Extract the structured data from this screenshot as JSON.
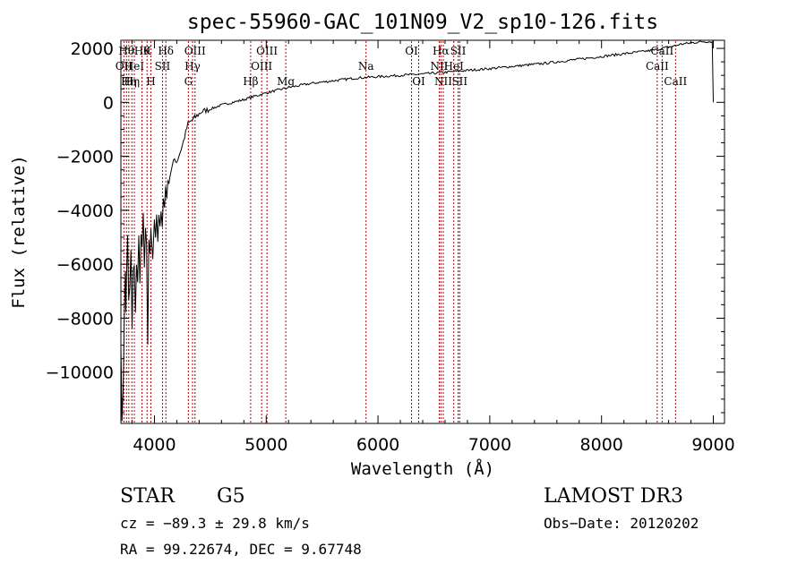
{
  "chart_data": {
    "type": "line",
    "title": "spec-55960-GAC_101N09_V2_sp10-126.fits",
    "xlabel": "Wavelength (Å)",
    "ylabel": "Flux (relative)",
    "xlim": [
      3700,
      9100
    ],
    "ylim": [
      -11900,
      2300
    ],
    "x_ticks": [
      4000,
      5000,
      6000,
      7000,
      8000,
      9000
    ],
    "y_ticks": [
      2000,
      0,
      -2000,
      -4000,
      -6000,
      -8000,
      -10000
    ],
    "y_tick_labels": [
      "2000",
      "0",
      "−2000",
      "−4000",
      "−6000",
      "−8000",
      "−10000"
    ],
    "grid": false,
    "line_color": "#000000",
    "marker_color": "#b00000",
    "series": [
      {
        "x": [
          3700,
          3705,
          3710,
          3715,
          3720,
          3725,
          3730,
          3735,
          3740,
          3745,
          3750,
          3760,
          3770,
          3780,
          3790,
          3800,
          3810,
          3820,
          3830,
          3840,
          3850,
          3860,
          3870,
          3880,
          3890,
          3900,
          3910,
          3920,
          3930,
          3935,
          3940,
          3950,
          3960,
          3968,
          3975,
          3985,
          4000,
          4010,
          4020,
          4030,
          4040,
          4050,
          4060,
          4070,
          4080,
          4090,
          4100,
          4110,
          4120,
          4130,
          4150,
          4180,
          4200,
          4250,
          4300,
          4340,
          4380,
          4420,
          4460,
          4500,
          4600,
          4700,
          4800,
          4861,
          4900,
          5000,
          5100,
          5200,
          5400,
          5600,
          5800,
          6000,
          6200,
          6400,
          6563,
          6700,
          7000,
          7500,
          8000,
          8400,
          8500,
          8540,
          8600,
          8662,
          8700,
          8800,
          8900,
          8960,
          8990,
          9000
        ],
        "y": [
          -8800,
          -10500,
          -11700,
          -11000,
          -10800,
          -9500,
          -8000,
          -7200,
          -6400,
          -7800,
          -6600,
          -5000,
          -7500,
          -6700,
          -5400,
          -8500,
          -6300,
          -5800,
          -7900,
          -6000,
          -6900,
          -5100,
          -6500,
          -4900,
          -5600,
          -4200,
          -6200,
          -4700,
          -5500,
          -7400,
          -8900,
          -5000,
          -5800,
          -4600,
          -5000,
          -5700,
          -4300,
          -4900,
          -4400,
          -5200,
          -4300,
          -4800,
          -3800,
          -4500,
          -3600,
          -3900,
          -3100,
          -3500,
          -3000,
          -2900,
          -2500,
          -2100,
          -2200,
          -1600,
          -800,
          -650,
          -500,
          -350,
          -300,
          -250,
          -100,
          0,
          100,
          180,
          230,
          350,
          450,
          550,
          700,
          800,
          900,
          950,
          1000,
          1050,
          1100,
          1150,
          1250,
          1450,
          1700,
          1900,
          1950,
          2000,
          2050,
          2100,
          2150,
          2200,
          2250,
          2250,
          2250,
          0
        ],
        "noise": true
      }
    ],
    "spectral_lines": [
      {
        "x": 3727,
        "labels": [
          {
            "text": "OII",
            "row": 1
          }
        ]
      },
      {
        "x": 3750,
        "labels": [
          {
            "text": "Hθ",
            "row": 0
          }
        ]
      },
      {
        "x": 3771,
        "labels": [
          {
            "text": "Hη",
            "row": 2
          }
        ]
      },
      {
        "x": 3798,
        "labels": [
          {
            "text": "Hη",
            "row": 2
          }
        ]
      },
      {
        "x": 3820,
        "labels": [
          {
            "text": "HeI",
            "row": 1
          }
        ]
      },
      {
        "x": 3889,
        "labels": [
          {
            "text": "Hθ",
            "row": 0
          }
        ]
      },
      {
        "x": 3934,
        "labels": [
          {
            "text": "K",
            "row": 0
          }
        ]
      },
      {
        "x": 3968,
        "labels": [
          {
            "text": "H",
            "row": 2
          }
        ]
      },
      {
        "x": 4072,
        "labels": [
          {
            "text": "SII",
            "row": 1
          }
        ]
      },
      {
        "x": 4102,
        "labels": [
          {
            "text": "Hδ",
            "row": 0
          }
        ]
      },
      {
        "x": 4304,
        "labels": [
          {
            "text": "G",
            "row": 2
          }
        ]
      },
      {
        "x": 4341,
        "labels": [
          {
            "text": "Hγ",
            "row": 1
          }
        ]
      },
      {
        "x": 4363,
        "labels": [
          {
            "text": "OIII",
            "row": 0
          }
        ]
      },
      {
        "x": 4861,
        "labels": [
          {
            "text": "Hβ",
            "row": 2
          }
        ]
      },
      {
        "x": 4959,
        "labels": [
          {
            "text": "OIII",
            "row": 1
          }
        ]
      },
      {
        "x": 5007,
        "labels": [
          {
            "text": "OIII",
            "row": 0
          }
        ]
      },
      {
        "x": 5175,
        "labels": [
          {
            "text": "Mg",
            "row": 2
          }
        ]
      },
      {
        "x": 5893,
        "labels": [
          {
            "text": "Na",
            "row": 1
          }
        ]
      },
      {
        "x": 6300,
        "labels": [
          {
            "text": "OI",
            "row": 0
          }
        ]
      },
      {
        "x": 6364,
        "labels": [
          {
            "text": "OI",
            "row": 2
          }
        ]
      },
      {
        "x": 6548,
        "labels": [
          {
            "text": "NII",
            "row": 1
          }
        ]
      },
      {
        "x": 6563,
        "labels": [
          {
            "text": "Hα",
            "row": 0
          }
        ]
      },
      {
        "x": 6584,
        "labels": [
          {
            "text": "NII",
            "row": 2
          }
        ]
      },
      {
        "x": 6678,
        "labels": [
          {
            "text": "HeI",
            "row": 1
          }
        ]
      },
      {
        "x": 6717,
        "labels": [
          {
            "text": "SII",
            "row": 0
          }
        ]
      },
      {
        "x": 6731,
        "labels": [
          {
            "text": "SII",
            "row": 2
          }
        ]
      },
      {
        "x": 8498,
        "labels": [
          {
            "text": "CaII",
            "row": 1
          }
        ]
      },
      {
        "x": 8542,
        "labels": [
          {
            "text": "CaII",
            "row": 0
          }
        ]
      },
      {
        "x": 8662,
        "labels": [
          {
            "text": "CaII",
            "row": 2
          }
        ]
      }
    ]
  },
  "info": {
    "object_class": "STAR",
    "subclass": "G5",
    "survey": "LAMOST DR3",
    "redshift_line": "cz = −89.3 ± 29.8 km/s",
    "obs_date_line": "Obs−Date: 20120202",
    "coords_line": "RA =  99.22674, DEC =   9.67748"
  }
}
